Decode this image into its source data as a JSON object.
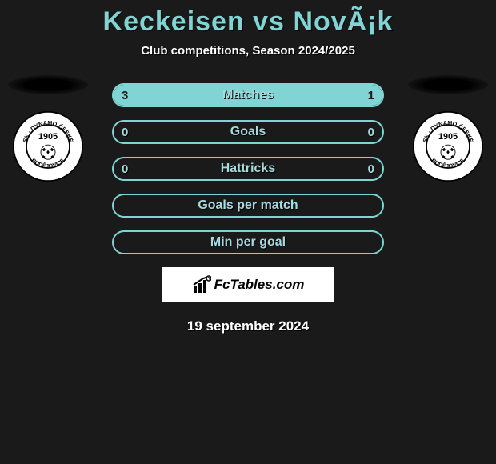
{
  "colors": {
    "background": "#1a1a1a",
    "accent": "#80d4d4",
    "text_light": "#ffffff",
    "bar_border": "#80d4d4",
    "bar_fill": "#80d4d4",
    "bar_label": "#a7dbe0"
  },
  "header": {
    "title": "Keckeisen vs NovÃ¡k",
    "subtitle": "Club competitions, Season 2024/2025"
  },
  "club": {
    "name": "SK Dynamo České Budějovice",
    "year": "1905",
    "ring_text": "SK · DYNAMO ČESKÉ · BUDĚJOVICE"
  },
  "bars": [
    {
      "key": "matches",
      "label": "Matches",
      "left_value": "3",
      "right_value": "1",
      "left_pct": 75,
      "right_pct": 25,
      "show_left_inside": true,
      "show_right_inside": true
    },
    {
      "key": "goals",
      "label": "Goals",
      "left_value": "0",
      "right_value": "0",
      "left_pct": 0,
      "right_pct": 0,
      "show_left_inside": false,
      "show_right_inside": false
    },
    {
      "key": "hattricks",
      "label": "Hattricks",
      "left_value": "0",
      "right_value": "0",
      "left_pct": 0,
      "right_pct": 0,
      "show_left_inside": false,
      "show_right_inside": false
    },
    {
      "key": "gpm",
      "label": "Goals per match",
      "left_value": "",
      "right_value": "",
      "left_pct": 0,
      "right_pct": 0,
      "show_left_inside": false,
      "show_right_inside": false
    },
    {
      "key": "mpg",
      "label": "Min per goal",
      "left_value": "",
      "right_value": "",
      "left_pct": 0,
      "right_pct": 0,
      "show_left_inside": false,
      "show_right_inside": false
    }
  ],
  "watermark": {
    "text": "FcTables.com"
  },
  "footer": {
    "date": "19 september 2024"
  }
}
